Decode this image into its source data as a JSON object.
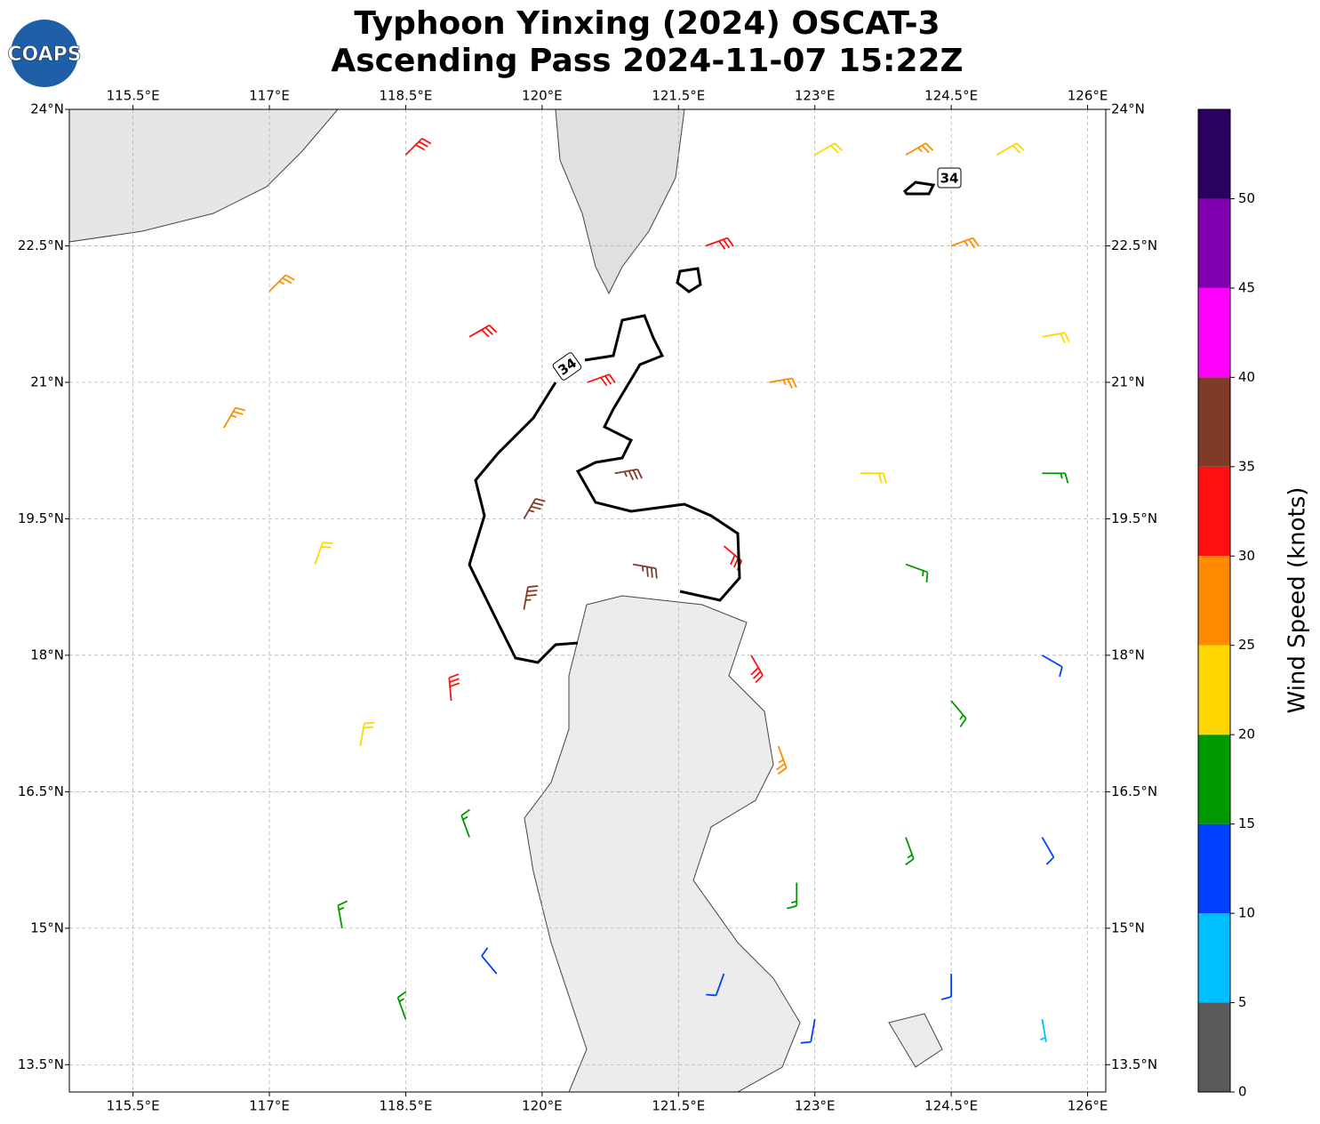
{
  "header": {
    "title": [
      "Typhoon Yinxing (2024) OSCAT-3",
      "Ascending Pass 2024-11-07 15:22Z"
    ],
    "logo": "COAPS"
  },
  "map": {
    "xlim": [
      114.8,
      126.2
    ],
    "ylim": [
      13.2,
      24
    ],
    "xticks": [
      {
        "value": 115.5,
        "label": "115.5°E"
      },
      {
        "value": 117,
        "label": "117°E"
      },
      {
        "value": 118.5,
        "label": "118.5°E"
      },
      {
        "value": 120,
        "label": "120°E"
      },
      {
        "value": 121.5,
        "label": "121.5°E"
      },
      {
        "value": 123,
        "label": "123°E"
      },
      {
        "value": 124.5,
        "label": "124.5°E"
      },
      {
        "value": 126,
        "label": "126°E"
      }
    ],
    "yticks": [
      {
        "value": 13.5,
        "label": "13.5°N"
      },
      {
        "value": 15,
        "label": "15°N"
      },
      {
        "value": 16.5,
        "label": "16.5°N"
      },
      {
        "value": 18,
        "label": "18°N"
      },
      {
        "value": 19.5,
        "label": "19.5°N"
      },
      {
        "value": 21,
        "label": "21°N"
      },
      {
        "value": 22.5,
        "label": "22.5°N"
      },
      {
        "value": 24,
        "label": "24°N"
      }
    ],
    "grid": true,
    "contour_labels": [
      "34",
      "34"
    ],
    "barbs": {
      "lon": [
        118.5,
        117.0,
        116.5,
        117.5,
        118.0,
        117.8,
        118.5,
        119.2,
        119.8,
        119.8,
        119.0,
        119.2,
        119.5,
        120.5,
        120.8,
        121.0,
        122.0,
        122.3,
        122.6,
        122.8,
        122.0,
        121.8,
        122.5,
        123.5,
        124.0,
        124.5,
        124.0,
        124.5,
        123.0,
        124.5,
        125.5,
        125.5,
        125.5,
        125.5,
        125.5,
        124.0,
        125.0,
        123.0
      ],
      "lat": [
        23.5,
        22.0,
        20.5,
        19.0,
        17.0,
        15.0,
        14.0,
        21.5,
        19.5,
        18.5,
        17.5,
        16.0,
        14.5,
        21.0,
        20.0,
        19.0,
        19.2,
        18.0,
        17.0,
        15.5,
        14.5,
        22.5,
        21.0,
        20.0,
        19.0,
        17.5,
        16.0,
        14.5,
        23.5,
        22.5,
        21.5,
        20.0,
        18.0,
        16.0,
        14.0,
        23.5,
        23.5,
        14.0
      ],
      "speed": [
        32,
        27,
        27,
        22,
        22,
        17,
        17,
        32,
        37,
        37,
        32,
        17,
        12,
        32,
        37,
        37,
        32,
        32,
        27,
        17,
        12,
        32,
        27,
        22,
        17,
        17,
        17,
        12,
        22,
        27,
        22,
        17,
        12,
        12,
        7,
        27,
        22,
        12
      ],
      "direction": [
        45,
        45,
        30,
        20,
        10,
        350,
        340,
        60,
        30,
        10,
        355,
        340,
        320,
        70,
        80,
        100,
        130,
        150,
        160,
        180,
        200,
        70,
        80,
        90,
        110,
        140,
        160,
        180,
        60,
        70,
        80,
        90,
        120,
        150,
        170,
        60,
        60,
        190
      ]
    }
  },
  "colorbar": {
    "label": "Wind Speed (knots)",
    "lim": [
      0,
      55
    ],
    "bounds": [
      0,
      5,
      10,
      15,
      20,
      25,
      30,
      35,
      40,
      45,
      50,
      55
    ],
    "colors": [
      "#5a5a5a",
      "#00bfff",
      "#0040ff",
      "#009900",
      "#ffd700",
      "#ff8c00",
      "#ff1010",
      "#803a28",
      "#ff00ff",
      "#8000b0",
      "#2a0060"
    ],
    "ticks": [
      0,
      5,
      10,
      15,
      20,
      25,
      30,
      35,
      40,
      45,
      50
    ]
  }
}
